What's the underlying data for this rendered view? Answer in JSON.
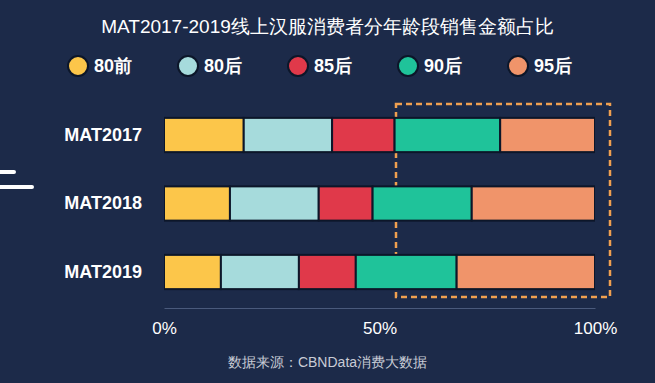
{
  "chart_data": {
    "type": "bar",
    "orientation": "horizontal",
    "stacked": true,
    "title": "MAT2017-2019线上汉服消费者分年龄段销售金额占比",
    "categories": [
      "MAT2017",
      "MAT2018",
      "MAT2019"
    ],
    "series": [
      {
        "name": "80前",
        "color": "#fcc64a",
        "values": [
          18.5,
          15.3,
          13.2
        ]
      },
      {
        "name": "80后",
        "color": "#a6dbdc",
        "values": [
          20.5,
          20.6,
          18.1
        ]
      },
      {
        "name": "85后",
        "color": "#e0394a",
        "values": [
          14.5,
          12.5,
          13.2
        ]
      },
      {
        "name": "90后",
        "color": "#1fc39a",
        "values": [
          24.5,
          23.0,
          23.4
        ]
      },
      {
        "name": "95后",
        "color": "#f0946a",
        "values": [
          22.0,
          28.6,
          32.1
        ]
      }
    ],
    "xlim": [
      0,
      100
    ],
    "xticks": [
      {
        "value": 0,
        "label": "0%"
      },
      {
        "value": 50,
        "label": "50%"
      },
      {
        "value": 100,
        "label": "100%"
      }
    ],
    "legend": "top",
    "source": "数据来源：CBNData消费大数据"
  }
}
